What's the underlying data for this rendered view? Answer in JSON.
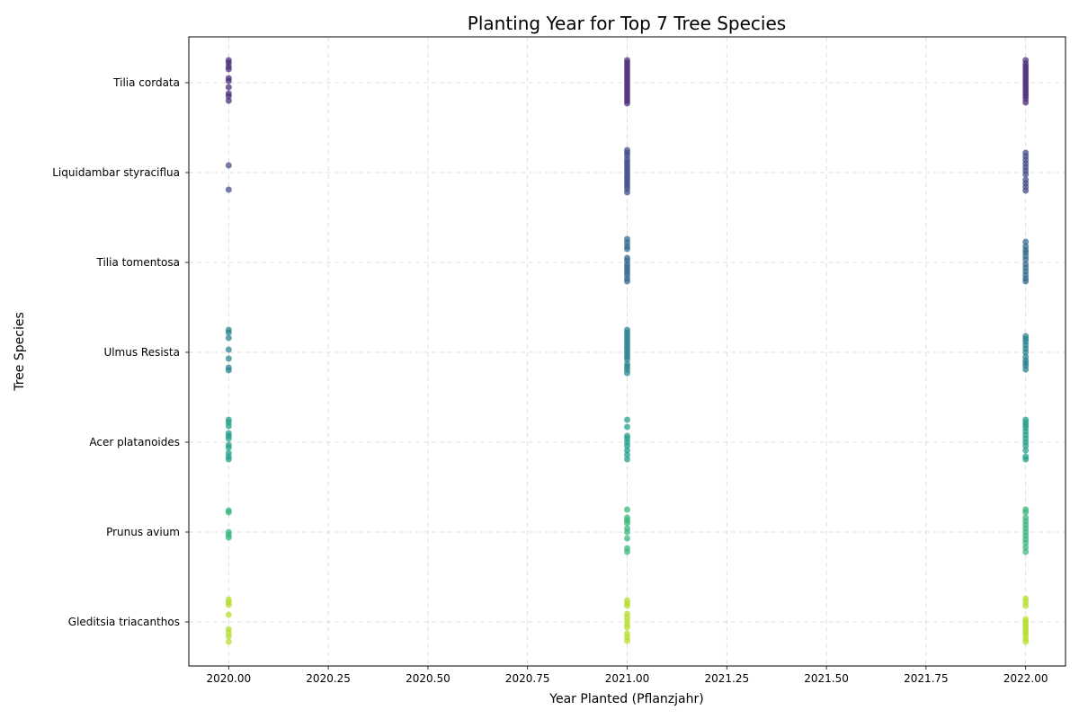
{
  "chart_data": {
    "type": "scatter",
    "title": "Planting Year for Top 7 Tree Species",
    "xlabel": "Year Planted (Pflanzjahr)",
    "ylabel": "Tree Species",
    "xlim": [
      2019.9,
      2022.1
    ],
    "x_ticks": [
      "2020.00",
      "2020.25",
      "2020.50",
      "2020.75",
      "2021.00",
      "2021.25",
      "2021.50",
      "2021.75",
      "2022.00"
    ],
    "categories": [
      "Tilia cordata",
      "Liquidambar styraciflua",
      "Tilia tomentosa",
      "Ulmus Resista",
      "Acer platanoides",
      "Prunus avium",
      "Gleditsia triacanthos"
    ],
    "grid": true,
    "note": "y positions within each species row are jittered for visibility",
    "series": [
      {
        "category": "Tilia cordata",
        "color": "#482878",
        "points": [
          {
            "x": 2020,
            "jitter": [
              0.25,
              0.22,
              0.18,
              0.15,
              0.05,
              0.02,
              -0.05,
              -0.12,
              -0.15,
              -0.2
            ]
          },
          {
            "x": 2021,
            "jitter": [
              0.25,
              0.22,
              0.19,
              0.16,
              0.13,
              0.1,
              0.07,
              0.04,
              0.01,
              -0.02,
              -0.05,
              -0.08,
              -0.11,
              -0.14,
              -0.17,
              -0.2,
              -0.23
            ]
          },
          {
            "x": 2022,
            "jitter": [
              0.25,
              0.21,
              0.18,
              0.15,
              0.12,
              0.09,
              0.06,
              0.03,
              0.0,
              -0.03,
              -0.06,
              -0.09,
              -0.12,
              -0.15,
              -0.18,
              -0.22
            ]
          }
        ]
      },
      {
        "category": "Liquidambar styraciflua",
        "color": "#3e4a89",
        "points": [
          {
            "x": 2020,
            "jitter": [
              0.08,
              -0.19
            ]
          },
          {
            "x": 2021,
            "jitter": [
              0.25,
              0.22,
              0.19,
              0.15,
              0.12,
              0.09,
              0.06,
              0.03,
              0.0,
              -0.03,
              -0.06,
              -0.09,
              -0.12,
              -0.15,
              -0.18,
              -0.22
            ]
          },
          {
            "x": 2022,
            "jitter": [
              0.22,
              0.18,
              0.14,
              0.1,
              0.06,
              0.02,
              -0.02,
              -0.08,
              -0.12,
              -0.16,
              -0.2
            ]
          }
        ]
      },
      {
        "category": "Tilia tomentosa",
        "color": "#31688e",
        "points": [
          {
            "x": 2021,
            "jitter": [
              0.26,
              0.22,
              0.18,
              0.15,
              0.05,
              0.02,
              -0.02,
              -0.05,
              -0.08,
              -0.11,
              -0.14,
              -0.18,
              -0.21
            ]
          },
          {
            "x": 2022,
            "jitter": [
              0.23,
              0.18,
              0.14,
              0.11,
              0.07,
              0.03,
              -0.02,
              -0.06,
              -0.1,
              -0.14,
              -0.18,
              -0.21
            ]
          }
        ]
      },
      {
        "category": "Ulmus Resista",
        "color": "#26828e",
        "points": [
          {
            "x": 2020,
            "jitter": [
              0.25,
              0.22,
              0.16,
              0.03,
              -0.07,
              -0.17,
              -0.2
            ]
          },
          {
            "x": 2021,
            "jitter": [
              0.25,
              0.22,
              0.19,
              0.16,
              0.13,
              0.1,
              0.07,
              0.04,
              0.01,
              -0.02,
              -0.05,
              -0.08,
              -0.13,
              -0.16,
              -0.19,
              -0.23
            ]
          },
          {
            "x": 2022,
            "jitter": [
              0.18,
              0.15,
              0.12,
              0.08,
              0.04,
              0.0,
              -0.05,
              -0.09,
              -0.12,
              -0.15,
              -0.19
            ]
          }
        ]
      },
      {
        "category": "Acer platanoides",
        "color": "#1f9e89",
        "points": [
          {
            "x": 2020,
            "jitter": [
              0.25,
              0.22,
              0.18,
              0.1,
              0.07,
              0.04,
              -0.03,
              -0.06,
              -0.12,
              -0.16,
              -0.19
            ]
          },
          {
            "x": 2021,
            "jitter": [
              0.25,
              0.17,
              0.07,
              0.04,
              0.0,
              -0.04,
              -0.09,
              -0.14,
              -0.19
            ]
          },
          {
            "x": 2022,
            "jitter": [
              0.25,
              0.22,
              0.19,
              0.16,
              0.12,
              0.08,
              0.04,
              0.0,
              -0.04,
              -0.09,
              -0.16,
              -0.19
            ]
          }
        ]
      },
      {
        "category": "Prunus avium",
        "color": "#35b779",
        "points": [
          {
            "x": 2020,
            "jitter": [
              0.24,
              0.22,
              0.0,
              -0.03,
              -0.06
            ]
          },
          {
            "x": 2021,
            "jitter": [
              0.25,
              0.16,
              0.13,
              0.1,
              0.04,
              0.0,
              -0.07,
              -0.18,
              -0.22
            ]
          },
          {
            "x": 2022,
            "jitter": [
              0.25,
              0.22,
              0.16,
              0.12,
              0.08,
              0.04,
              0.0,
              -0.04,
              -0.08,
              -0.12,
              -0.17,
              -0.22
            ]
          }
        ]
      },
      {
        "category": "Gleditsia triacanthos",
        "color": "#b5de2b",
        "points": [
          {
            "x": 2020,
            "jitter": [
              0.25,
              0.22,
              0.19,
              0.08,
              -0.08,
              -0.12,
              -0.16,
              -0.22
            ]
          },
          {
            "x": 2021,
            "jitter": [
              0.24,
              0.21,
              0.18,
              0.09,
              0.05,
              0.01,
              -0.03,
              -0.06,
              -0.13,
              -0.17,
              -0.21
            ]
          },
          {
            "x": 2022,
            "jitter": [
              0.26,
              0.22,
              0.18,
              0.03,
              0.0,
              -0.03,
              -0.06,
              -0.09,
              -0.12,
              -0.15,
              -0.19,
              -0.22
            ]
          }
        ]
      }
    ]
  }
}
